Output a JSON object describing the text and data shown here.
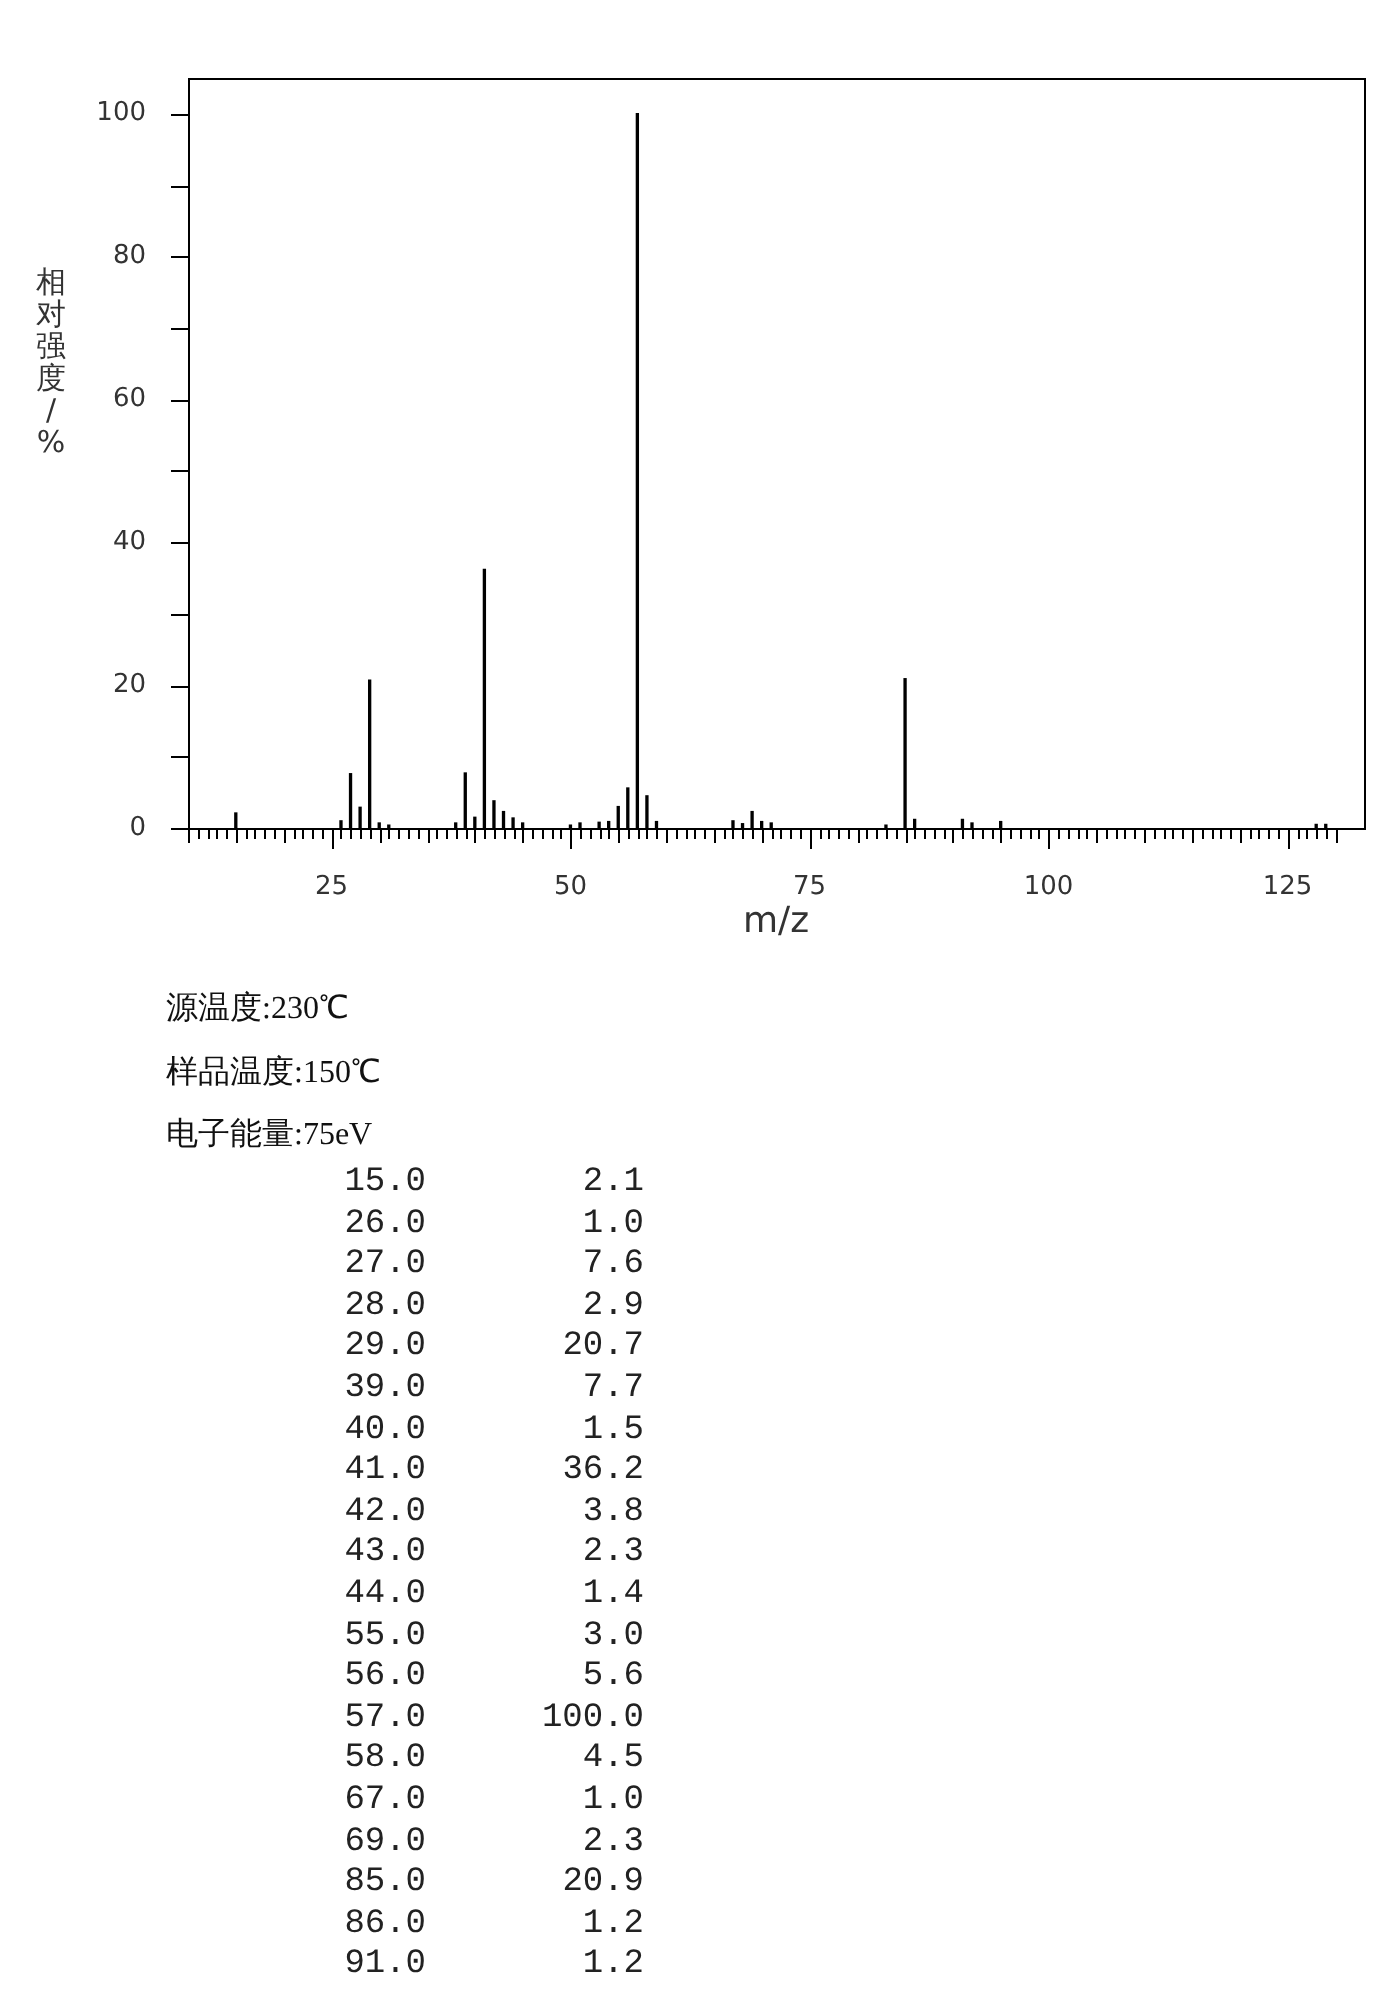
{
  "chart_data": [
    {
      "type": "bar",
      "xlabel": "m/z",
      "ylabel": "相对强度/%",
      "x": [
        15.0,
        26.0,
        27.0,
        28.0,
        29.0,
        30.0,
        31.0,
        38.0,
        39.0,
        40.0,
        41.0,
        42.0,
        43.0,
        44.0,
        45.0,
        50.0,
        51.0,
        53.0,
        54.0,
        55.0,
        56.0,
        57.0,
        58.0,
        59.0,
        67.0,
        68.0,
        69.0,
        70.0,
        71.0,
        83.0,
        85.0,
        86.0,
        91.0,
        92.0,
        95.0,
        128.0,
        129.0
      ],
      "values": [
        2.1,
        1.0,
        7.6,
        2.9,
        20.7,
        0.7,
        0.4,
        0.7,
        7.7,
        1.5,
        36.2,
        3.8,
        2.3,
        1.4,
        0.7,
        0.4,
        0.7,
        0.8,
        0.9,
        3.0,
        5.6,
        100.0,
        4.5,
        0.9,
        1.0,
        0.6,
        2.3,
        0.9,
        0.7,
        0.4,
        20.9,
        1.2,
        1.2,
        0.7,
        0.9,
        0.5,
        0.5
      ],
      "color": "#000000",
      "xlim": [
        10,
        133
      ],
      "ylim": [
        0,
        105
      ],
      "xticks": [
        {
          "value": 10,
          "label": null
        },
        {
          "value": 11,
          "label": null
        },
        {
          "value": 12,
          "label": null
        },
        {
          "value": 13,
          "label": null
        },
        {
          "value": 14,
          "label": null
        },
        {
          "value": 15,
          "label": null
        },
        {
          "value": 16,
          "label": null
        },
        {
          "value": 17,
          "label": null
        },
        {
          "value": 18,
          "label": null
        },
        {
          "value": 19,
          "label": null
        },
        {
          "value": 20,
          "label": null
        },
        {
          "value": 21,
          "label": null
        },
        {
          "value": 22,
          "label": null
        },
        {
          "value": 23,
          "label": null
        },
        {
          "value": 24,
          "label": null
        },
        25,
        {
          "value": 26,
          "label": null
        },
        {
          "value": 27,
          "label": null
        },
        {
          "value": 28,
          "label": null
        },
        {
          "value": 29,
          "label": null
        },
        {
          "value": 30,
          "label": null
        },
        {
          "value": 31,
          "label": null
        },
        {
          "value": 32,
          "label": null
        },
        {
          "value": 33,
          "label": null
        },
        {
          "value": 34,
          "label": null
        },
        {
          "value": 35,
          "label": null
        },
        {
          "value": 36,
          "label": null
        },
        {
          "value": 37,
          "label": null
        },
        {
          "value": 38,
          "label": null
        },
        {
          "value": 39,
          "label": null
        },
        {
          "value": 40,
          "label": null
        },
        {
          "value": 41,
          "label": null
        },
        {
          "value": 42,
          "label": null
        },
        {
          "value": 43,
          "label": null
        },
        {
          "value": 44,
          "label": null
        },
        {
          "value": 45,
          "label": null
        },
        {
          "value": 46,
          "label": null
        },
        {
          "value": 47,
          "label": null
        },
        {
          "value": 48,
          "label": null
        },
        {
          "value": 49,
          "label": null
        },
        50,
        {
          "value": 51,
          "label": null
        },
        {
          "value": 52,
          "label": null
        },
        {
          "value": 53,
          "label": null
        },
        {
          "value": 54,
          "label": null
        },
        {
          "value": 55,
          "label": null
        },
        {
          "value": 56,
          "label": null
        },
        {
          "value": 57,
          "label": null
        },
        {
          "value": 58,
          "label": null
        },
        {
          "value": 59,
          "label": null
        },
        {
          "value": 60,
          "label": null
        },
        {
          "value": 61,
          "label": null
        },
        {
          "value": 62,
          "label": null
        },
        {
          "value": 63,
          "label": null
        },
        {
          "value": 64,
          "label": null
        },
        {
          "value": 65,
          "label": null
        },
        {
          "value": 66,
          "label": null
        },
        {
          "value": 67,
          "label": null
        },
        {
          "value": 68,
          "label": null
        },
        {
          "value": 69,
          "label": null
        },
        {
          "value": 70,
          "label": null
        },
        {
          "value": 71,
          "label": null
        },
        {
          "value": 72,
          "label": null
        },
        {
          "value": 73,
          "label": null
        },
        {
          "value": 74,
          "label": null
        },
        75,
        {
          "value": 76,
          "label": null
        },
        {
          "value": 77,
          "label": null
        },
        {
          "value": 78,
          "label": null
        },
        {
          "value": 79,
          "label": null
        },
        {
          "value": 80,
          "label": null
        },
        {
          "value": 81,
          "label": null
        },
        {
          "value": 82,
          "label": null
        },
        {
          "value": 83,
          "label": null
        },
        {
          "value": 84,
          "label": null
        },
        {
          "value": 85,
          "label": null
        },
        {
          "value": 86,
          "label": null
        },
        {
          "value": 87,
          "label": null
        },
        {
          "value": 88,
          "label": null
        },
        {
          "value": 89,
          "label": null
        },
        {
          "value": 90,
          "label": null
        },
        {
          "value": 91,
          "label": null
        },
        {
          "value": 92,
          "label": null
        },
        {
          "value": 93,
          "label": null
        },
        {
          "value": 94,
          "label": null
        },
        {
          "value": 95,
          "label": null
        },
        {
          "value": 96,
          "label": null
        },
        {
          "value": 97,
          "label": null
        },
        {
          "value": 98,
          "label": null
        },
        {
          "value": 99,
          "label": null
        },
        100,
        {
          "value": 101,
          "label": null
        },
        {
          "value": 102,
          "label": null
        },
        {
          "value": 103,
          "label": null
        },
        {
          "value": 104,
          "label": null
        },
        {
          "value": 105,
          "label": null
        },
        {
          "value": 106,
          "label": null
        },
        {
          "value": 107,
          "label": null
        },
        {
          "value": 108,
          "label": null
        },
        {
          "value": 109,
          "label": null
        },
        {
          "value": 110,
          "label": null
        },
        {
          "value": 111,
          "label": null
        },
        {
          "value": 112,
          "label": null
        },
        {
          "value": 113,
          "label": null
        },
        {
          "value": 114,
          "label": null
        },
        {
          "value": 115,
          "label": null
        },
        {
          "value": 116,
          "label": null
        },
        {
          "value": 117,
          "label": null
        },
        {
          "value": 118,
          "label": null
        },
        {
          "value": 119,
          "label": null
        },
        {
          "value": 120,
          "label": null
        },
        {
          "value": 121,
          "label": null
        },
        {
          "value": 122,
          "label": null
        },
        {
          "value": 123,
          "label": null
        },
        {
          "value": 124,
          "label": null
        },
        125,
        {
          "value": 126,
          "label": null
        },
        {
          "value": 127,
          "label": null
        },
        {
          "value": 128,
          "label": null
        },
        {
          "value": 129,
          "label": null
        },
        {
          "value": 130,
          "label": null
        }
      ],
      "yticks": [
        0,
        {
          "value": 10,
          "label": null
        },
        20,
        {
          "value": 30,
          "label": null
        },
        40,
        {
          "value": 50,
          "label": null
        },
        60,
        {
          "value": 70,
          "label": null
        },
        80,
        {
          "value": 90,
          "label": null
        },
        100
      ],
      "annotations": [
        "源温度:230℃",
        "样品温度:150℃",
        "电子能量:75eV"
      ]
    },
    {
      "type": "other",
      "annotations": [
        "15.0",
        "2.1",
        "26.0",
        "1.0",
        "27.0",
        "7.6",
        "28.0",
        "2.9",
        "29.0",
        "20.7",
        "39.0",
        "7.7",
        "40.0",
        "1.5",
        "41.0",
        "36.2",
        "42.0",
        "3.8",
        "43.0",
        "2.3",
        "44.0",
        "1.4",
        "55.0",
        "3.0",
        "56.0",
        "5.6",
        "57.0",
        "100.0",
        "58.0",
        "4.5",
        "67.0",
        "1.0",
        "69.0",
        "2.3",
        "85.0",
        "20.9",
        "86.0",
        "1.2",
        "91.0",
        "1.2"
      ]
    }
  ]
}
